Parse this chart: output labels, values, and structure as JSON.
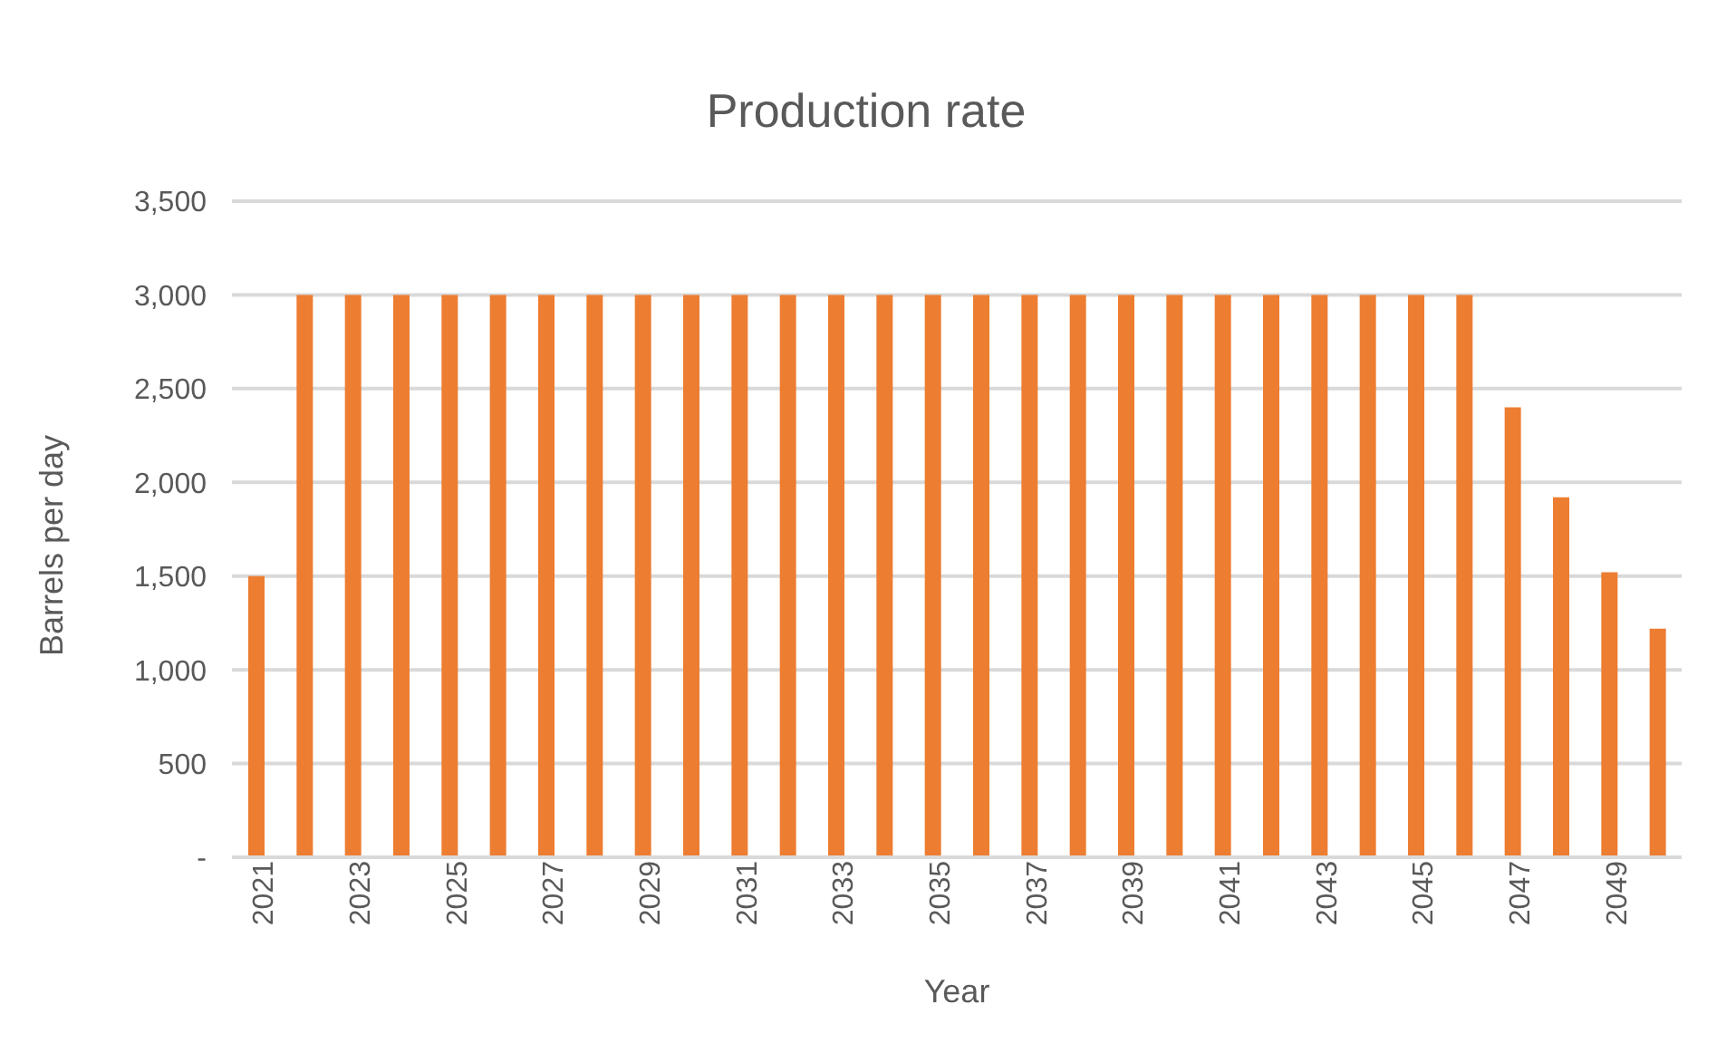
{
  "chart_data": {
    "type": "bar",
    "title": "Production rate",
    "xlabel": "Year",
    "ylabel": "Barrels per day",
    "categories": [
      "2021",
      null,
      "2023",
      null,
      "2025",
      null,
      "2027",
      null,
      "2029",
      null,
      "2031",
      null,
      "2033",
      null,
      "2035",
      null,
      "2037",
      null,
      "2039",
      null,
      "2041",
      null,
      "2043",
      null,
      "2045",
      null,
      "2047",
      null,
      "2049",
      null
    ],
    "values": [
      1500,
      3000,
      3000,
      3000,
      3000,
      3000,
      3000,
      3000,
      3000,
      3000,
      3000,
      3000,
      3000,
      3000,
      3000,
      3000,
      3000,
      3000,
      3000,
      3000,
      3000,
      3000,
      3000,
      3000,
      3000,
      3000,
      2400,
      1920,
      1520,
      1220
    ],
    "color": "#ed7d31",
    "ylim": [
      0,
      3500
    ],
    "yticks": [
      {
        "value": 0,
        "label": "-"
      },
      {
        "value": 500,
        "label": "500"
      },
      {
        "value": 1000,
        "label": "1,000"
      },
      {
        "value": 1500,
        "label": "1,500"
      },
      {
        "value": 2000,
        "label": "2,000"
      },
      {
        "value": 2500,
        "label": "2,500"
      },
      {
        "value": 3000,
        "label": "3,000"
      },
      {
        "value": 3500,
        "label": "3,500"
      }
    ],
    "grid": "y",
    "legend": false
  }
}
